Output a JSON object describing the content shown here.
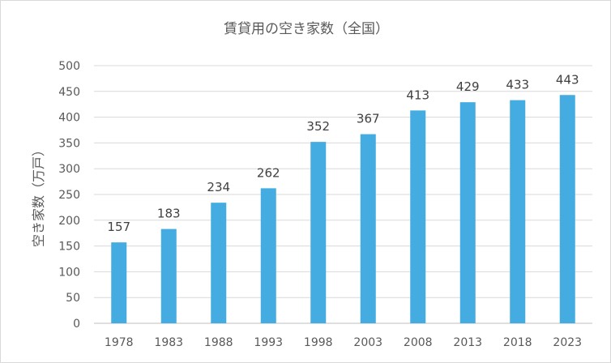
{
  "chart_data": {
    "type": "bar",
    "title": "賃貸用の空き家数（全国）",
    "xlabel": "",
    "ylabel": "空き家数（万戸）",
    "categories": [
      "1978",
      "1983",
      "1988",
      "1993",
      "1998",
      "2003",
      "2008",
      "2013",
      "2018",
      "2023"
    ],
    "values": [
      157,
      183,
      234,
      262,
      352,
      367,
      413,
      429,
      433,
      443
    ],
    "ylim": [
      0,
      500
    ],
    "yticks": [
      0,
      50,
      100,
      150,
      200,
      250,
      300,
      350,
      400,
      450,
      500
    ],
    "grid": true,
    "legend": "none",
    "bar_color": "#44ACE0"
  }
}
